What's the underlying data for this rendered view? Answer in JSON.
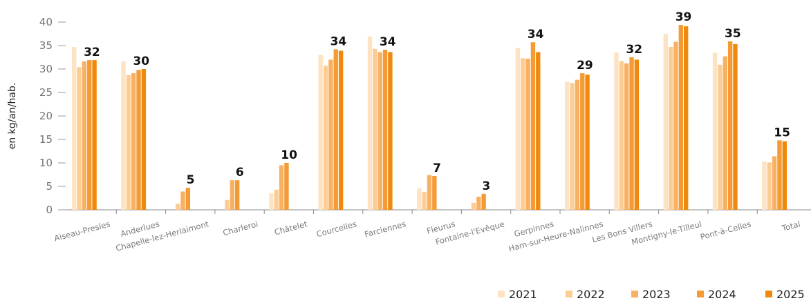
{
  "chart_data": {
    "type": "bar",
    "ylabel": "en kg/an/hab.",
    "xlabel": "",
    "ylim": [
      0,
      40
    ],
    "yticks": [
      0,
      5,
      10,
      15,
      20,
      25,
      30,
      35,
      40
    ],
    "legend_position": "bottom-right",
    "grid": false,
    "categories": [
      "Aiseau-Presles",
      "Anderlues",
      "Chapelle-lez-Herlaimont",
      "Charleroi",
      "Châtelet",
      "Courcelles",
      "Farciennes",
      "Fleurus",
      "Fontaine-l'Evêque",
      "Gerpinnes",
      "Ham-sur-Heure-Nalinnes",
      "Les Bons Villers",
      "Montigny-le-Tilleul",
      "Pont-à-Celles",
      "Total"
    ],
    "series": [
      {
        "name": "2021",
        "color": "#fde3c3",
        "values": [
          34.7,
          31.6,
          0,
          0,
          3.5,
          33.0,
          36.9,
          4.6,
          0,
          34.5,
          27.3,
          33.5,
          37.5,
          33.5,
          10.3
        ]
      },
      {
        "name": "2022",
        "color": "#fbcd95",
        "values": [
          30.4,
          28.7,
          1.3,
          2.1,
          4.3,
          30.7,
          34.3,
          3.8,
          1.5,
          32.3,
          27.0,
          31.7,
          34.7,
          30.9,
          10.1
        ]
      },
      {
        "name": "2023",
        "color": "#f8b163",
        "values": [
          31.6,
          29.1,
          3.9,
          6.3,
          9.5,
          32.0,
          33.6,
          7.4,
          2.8,
          32.2,
          27.7,
          31.2,
          35.8,
          32.7,
          11.4
        ]
      },
      {
        "name": "2024",
        "color": "#f49b35",
        "values": [
          31.9,
          29.8,
          4.7,
          6.3,
          10.0,
          34.2,
          34.1,
          7.2,
          3.4,
          35.7,
          29.1,
          32.5,
          39.4,
          35.9,
          14.8
        ]
      },
      {
        "name": "2025",
        "color": "#ef8a0c",
        "values": [
          31.9,
          30.0,
          0,
          0,
          0,
          33.9,
          33.6,
          0,
          0,
          33.6,
          28.8,
          32.0,
          39.1,
          35.3,
          14.6
        ]
      }
    ],
    "data_labels": [
      "32",
      "30",
      "5",
      "6",
      "10",
      "34",
      "34",
      "7",
      "3",
      "34",
      "29",
      "32",
      "39",
      "35",
      "15"
    ]
  }
}
